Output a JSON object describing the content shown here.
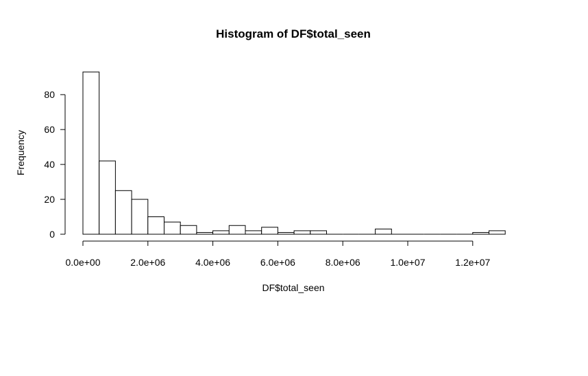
{
  "chart_data": {
    "type": "bar",
    "title": "Histogram of DF$total_seen",
    "xlabel": "DF$total_seen",
    "ylabel": "Frequency",
    "bin_width": 500000,
    "bin_start": 0,
    "values": [
      93,
      42,
      25,
      20,
      10,
      7,
      5,
      1,
      2,
      5,
      2,
      4,
      1,
      2,
      2,
      0,
      0,
      0,
      3,
      0,
      0,
      0,
      0,
      0,
      1,
      2
    ],
    "xlim": [
      0,
      13000000
    ],
    "ylim": [
      0,
      93
    ],
    "x_ticks": [
      0,
      2000000,
      4000000,
      6000000,
      8000000,
      10000000,
      12000000
    ],
    "x_tick_labels": [
      "0.0e+00",
      "2.0e+06",
      "4.0e+06",
      "6.0e+06",
      "8.0e+06",
      "1.0e+07",
      "1.2e+07"
    ],
    "y_ticks": [
      0,
      20,
      40,
      60,
      80
    ],
    "y_tick_labels": [
      "0",
      "20",
      "40",
      "60",
      "80"
    ],
    "grid": false
  }
}
